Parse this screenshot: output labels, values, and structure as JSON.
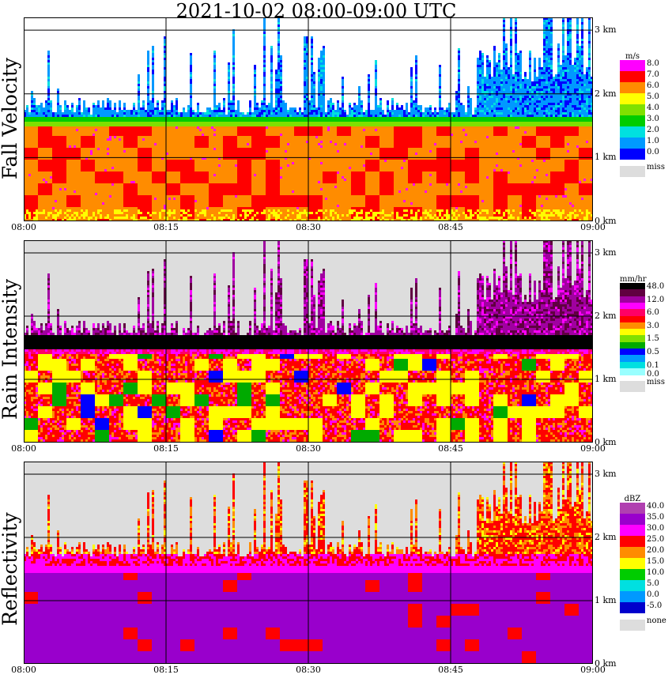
{
  "title": "2021-10-02   08:00-09:00 UTC",
  "colors": {
    "missing": "#dddddd",
    "grid": "#000000",
    "background": "#ffffff"
  },
  "panels": [
    {
      "id": "fall",
      "ylabel": "Fall Velocity",
      "unit": "m/s",
      "legend": [
        {
          "label": "8.0",
          "color": "#ff00ff"
        },
        {
          "label": "7.0",
          "color": "#ff0000"
        },
        {
          "label": "6.0",
          "color": "#ff8c00"
        },
        {
          "label": "5.0",
          "color": "#ffff00"
        },
        {
          "label": "4.0",
          "color": "#80e000"
        },
        {
          "label": "3.0",
          "color": "#00cc00"
        },
        {
          "label": "2.0",
          "color": "#00e0e0"
        },
        {
          "label": "1.0",
          "color": "#0099ff"
        },
        {
          "label": "0.0",
          "color": "#0000ff"
        }
      ],
      "miss_label": "miss"
    },
    {
      "id": "rain",
      "ylabel": "Rain Intensity",
      "unit": "mm/hr",
      "legend": [
        {
          "label": "48.0",
          "color": "#000000"
        },
        {
          "label": "",
          "color": "#600040"
        },
        {
          "label": "12.0",
          "color": "#a000a0"
        },
        {
          "label": "",
          "color": "#ff00ff"
        },
        {
          "label": "6.0",
          "color": "#ff0066"
        },
        {
          "label": "",
          "color": "#ff0000"
        },
        {
          "label": "3.0",
          "color": "#ff8c00"
        },
        {
          "label": "",
          "color": "#ffff00"
        },
        {
          "label": "1.5",
          "color": "#80e000"
        },
        {
          "label": "",
          "color": "#00aa00"
        },
        {
          "label": "0.5",
          "color": "#0000ff"
        },
        {
          "label": "",
          "color": "#0099ff"
        },
        {
          "label": "0.1",
          "color": "#00e0e0"
        },
        {
          "label": "",
          "color": "#99ffff"
        }
      ],
      "extra_label": "0.0",
      "miss_label": "miss"
    },
    {
      "id": "refl",
      "ylabel": "Reflectivity",
      "unit": "dBZ",
      "legend": [
        {
          "label": "40.0",
          "color": "#b040b0"
        },
        {
          "label": "35.0",
          "color": "#9900cc"
        },
        {
          "label": "30.0",
          "color": "#ff00ff"
        },
        {
          "label": "25.0",
          "color": "#ff0000"
        },
        {
          "label": "20.0",
          "color": "#ff8c00"
        },
        {
          "label": "15.0",
          "color": "#ffff00"
        },
        {
          "label": "10.0",
          "color": "#00cc00"
        },
        {
          "label": "5.0",
          "color": "#00e0e0"
        },
        {
          "label": "0.0",
          "color": "#0099ff"
        },
        {
          "label": "-5.0",
          "color": "#0000cc"
        }
      ],
      "miss_label": "none"
    }
  ],
  "chart_data": {
    "type": "heatmap",
    "title": "2021-10-02   08:00-09:00 UTC",
    "x_ticks": [
      "08:00",
      "08:15",
      "08:30",
      "08:45",
      "09:00"
    ],
    "y_ticks": [
      "0 km",
      "1 km",
      "2 km",
      "3 km"
    ],
    "xlim": [
      "08:00",
      "09:00"
    ],
    "ylim_km": [
      0,
      3.2
    ],
    "grid": true,
    "melting_layer_km": 1.5,
    "series": [
      {
        "name": "Fall Velocity",
        "unit": "m/s",
        "rain_below_ml_ms": 6.5,
        "snow_above_ml_ms": 1.5,
        "precip_top_km": 1.7
      },
      {
        "name": "Rain Intensity",
        "unit": "mm/hr",
        "bright_band_mmhr": 48.0,
        "rain_below_ml_mmhr": 5.0,
        "precip_top_km": 1.7
      },
      {
        "name": "Reflectivity",
        "unit": "dBZ",
        "rain_below_ml_dbz": 36.0,
        "bright_band_dbz": 33.0,
        "snow_above_ml_dbz": 25.0,
        "precip_top_km": 1.7
      }
    ]
  }
}
